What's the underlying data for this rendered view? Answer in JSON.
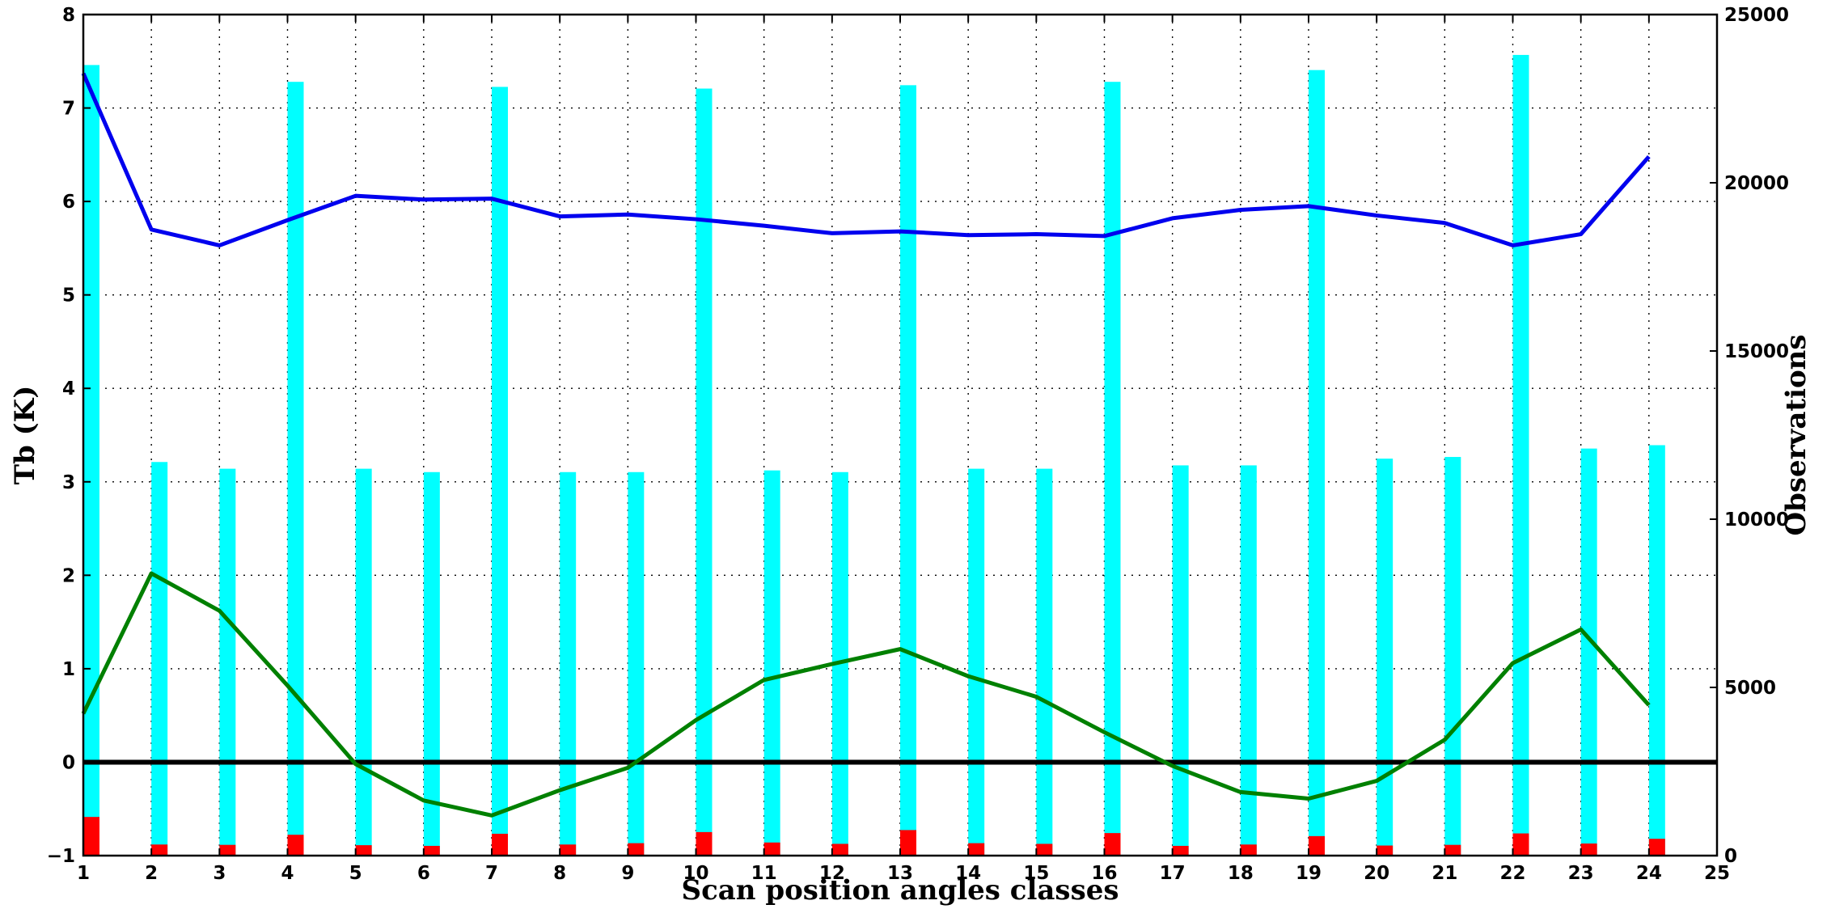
{
  "chart_data": {
    "type": "bar",
    "title": "",
    "xlabel": "Scan position angles classes",
    "ylabel_left": "Tb (K)",
    "ylabel_right": "Observations",
    "xlim": [
      1,
      25
    ],
    "ylim_left": [
      -1,
      8
    ],
    "ylim_right": [
      0,
      25000
    ],
    "grid": true,
    "x_ticks": [
      1,
      2,
      3,
      4,
      5,
      6,
      7,
      8,
      9,
      10,
      11,
      12,
      13,
      14,
      15,
      16,
      17,
      18,
      19,
      20,
      21,
      22,
      23,
      24,
      25
    ],
    "y_left_ticks": [
      -1,
      0,
      1,
      2,
      3,
      4,
      5,
      6,
      7,
      8
    ],
    "y_right_ticks": [
      0,
      5000,
      10000,
      15000,
      20000,
      25000
    ],
    "x": [
      1,
      2,
      3,
      4,
      5,
      6,
      7,
      8,
      9,
      10,
      11,
      12,
      13,
      14,
      15,
      16,
      17,
      18,
      19,
      20,
      21,
      22,
      23,
      24
    ],
    "series": [
      {
        "kind": "bar",
        "axis": "right",
        "color": "#00ffff",
        "values": [
          23500,
          11700,
          11500,
          23000,
          11500,
          11400,
          22850,
          11400,
          11400,
          22800,
          11450,
          11400,
          22900,
          11500,
          11500,
          23000,
          11600,
          11600,
          23350,
          11800,
          11850,
          23800,
          12100,
          12200
        ]
      },
      {
        "kind": "bar",
        "axis": "right",
        "color": "#ff0000",
        "values": [
          1150,
          330,
          320,
          620,
          310,
          290,
          650,
          330,
          370,
          700,
          390,
          350,
          760,
          370,
          350,
          670,
          290,
          330,
          580,
          300,
          320,
          660,
          360,
          500
        ]
      },
      {
        "kind": "line",
        "axis": "left",
        "color": "#0000ee",
        "values": [
          7.37,
          5.7,
          5.53,
          5.8,
          6.06,
          6.02,
          6.03,
          5.84,
          5.86,
          5.81,
          5.74,
          5.66,
          5.68,
          5.64,
          5.65,
          5.63,
          5.82,
          5.91,
          5.95,
          5.85,
          5.77,
          5.53,
          5.65,
          6.48
        ]
      },
      {
        "kind": "line",
        "axis": "left",
        "color": "#008000",
        "values": [
          0.52,
          2.02,
          1.62,
          0.82,
          -0.02,
          -0.41,
          -0.57,
          -0.3,
          -0.06,
          0.45,
          0.88,
          1.05,
          1.21,
          0.92,
          0.7,
          0.32,
          -0.04,
          -0.32,
          -0.39,
          -0.2,
          0.24,
          1.06,
          1.42,
          0.61
        ]
      }
    ],
    "reference_line": {
      "axis": "left",
      "y": 0,
      "color": "#000000"
    }
  }
}
